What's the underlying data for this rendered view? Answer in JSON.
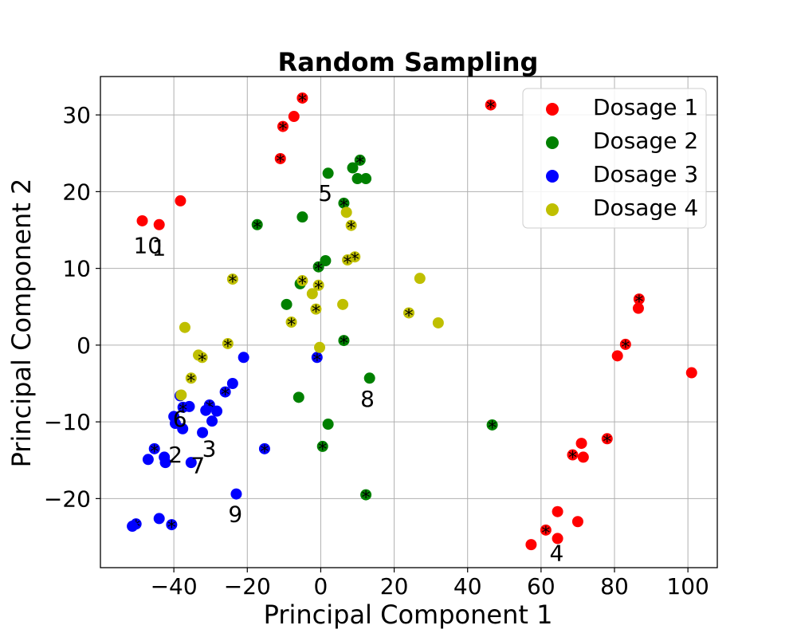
{
  "chart_data": {
    "type": "scatter",
    "title": "Random Sampling",
    "xlabel": "Principal Component 1",
    "ylabel": "Principal Component 2",
    "xlim": [
      -60,
      108
    ],
    "ylim": [
      -29,
      35
    ],
    "xticks": [
      -40,
      -20,
      0,
      20,
      40,
      60,
      80,
      100
    ],
    "yticks": [
      -20,
      -10,
      0,
      10,
      20,
      30
    ],
    "xtick_labels": [
      "−40",
      "−20",
      "0",
      "20",
      "40",
      "60",
      "80",
      "100"
    ],
    "ytick_labels": [
      "−20",
      "−10",
      "0",
      "10",
      "20",
      "30"
    ],
    "grid": true,
    "legend_position": "top-right",
    "series": [
      {
        "name": "Dosage 1",
        "color": "#ff0000",
        "points": [
          {
            "x": -5,
            "y": 32.2,
            "s": true
          },
          {
            "x": 46.3,
            "y": 31.3,
            "s": true
          },
          {
            "x": -7.3,
            "y": 29.8,
            "s": false
          },
          {
            "x": -10.3,
            "y": 28.5,
            "s": true
          },
          {
            "x": -11,
            "y": 24.3,
            "s": true
          },
          {
            "x": -38.2,
            "y": 18.8,
            "s": false
          },
          {
            "x": -48.6,
            "y": 16.2,
            "s": false
          },
          {
            "x": -44,
            "y": 15.7,
            "s": false
          },
          {
            "x": 86.7,
            "y": 6,
            "s": true
          },
          {
            "x": 86.5,
            "y": 4.8,
            "s": false
          },
          {
            "x": 83,
            "y": 0.1,
            "s": true
          },
          {
            "x": 80.8,
            "y": -1.4,
            "s": false
          },
          {
            "x": 101,
            "y": -3.6,
            "s": false
          },
          {
            "x": 78,
            "y": -12.2,
            "s": true
          },
          {
            "x": 71,
            "y": -12.8,
            "s": false
          },
          {
            "x": 68.6,
            "y": -14.3,
            "s": true
          },
          {
            "x": 71.5,
            "y": -14.6,
            "s": false
          },
          {
            "x": 64.5,
            "y": -21.7,
            "s": false
          },
          {
            "x": 70,
            "y": -23,
            "s": false
          },
          {
            "x": 61.3,
            "y": -24.1,
            "s": true
          },
          {
            "x": 64.5,
            "y": -25.2,
            "s": false
          },
          {
            "x": 57.3,
            "y": -26,
            "s": false
          }
        ]
      },
      {
        "name": "Dosage 2",
        "color": "#008000",
        "points": [
          {
            "x": 10.7,
            "y": 24.1,
            "s": true
          },
          {
            "x": 8.7,
            "y": 23.1,
            "s": false
          },
          {
            "x": 2,
            "y": 22.4,
            "s": false
          },
          {
            "x": 10,
            "y": 21.7,
            "s": false
          },
          {
            "x": 12.3,
            "y": 21.7,
            "s": false
          },
          {
            "x": 6.3,
            "y": 18.5,
            "s": true
          },
          {
            "x": -5,
            "y": 16.7,
            "s": false
          },
          {
            "x": -17.3,
            "y": 15.7,
            "s": true
          },
          {
            "x": 1.3,
            "y": 11,
            "s": false
          },
          {
            "x": -0.6,
            "y": 10.2,
            "s": true
          },
          {
            "x": -5.6,
            "y": 8,
            "s": false
          },
          {
            "x": -9.3,
            "y": 5.3,
            "s": false
          },
          {
            "x": 6.3,
            "y": 0.6,
            "s": true
          },
          {
            "x": 13.3,
            "y": -4.3,
            "s": false
          },
          {
            "x": -6,
            "y": -6.8,
            "s": false
          },
          {
            "x": 2,
            "y": -10.3,
            "s": false
          },
          {
            "x": 46.7,
            "y": -10.4,
            "s": true
          },
          {
            "x": 0.5,
            "y": -13.2,
            "s": true
          },
          {
            "x": 12.3,
            "y": -19.5,
            "s": true
          }
        ]
      },
      {
        "name": "Dosage 3",
        "color": "#0000ff",
        "points": [
          {
            "x": -21,
            "y": -1.6,
            "s": false
          },
          {
            "x": -1,
            "y": -1.6,
            "s": true
          },
          {
            "x": -24,
            "y": -5,
            "s": false
          },
          {
            "x": -26,
            "y": -6.1,
            "s": true
          },
          {
            "x": -38.3,
            "y": -6.6,
            "s": true
          },
          {
            "x": -35.8,
            "y": -8,
            "s": false
          },
          {
            "x": -37.5,
            "y": -8.1,
            "s": true
          },
          {
            "x": -30.3,
            "y": -7.8,
            "s": true
          },
          {
            "x": -31.3,
            "y": -8.5,
            "s": false
          },
          {
            "x": -28.3,
            "y": -8.6,
            "s": false
          },
          {
            "x": -40,
            "y": -9.3,
            "s": false
          },
          {
            "x": -29.6,
            "y": -9.9,
            "s": false
          },
          {
            "x": -39.6,
            "y": -10.2,
            "s": false
          },
          {
            "x": -37.6,
            "y": -10.9,
            "s": false
          },
          {
            "x": -32.2,
            "y": -11.4,
            "s": false
          },
          {
            "x": -15.3,
            "y": -13.5,
            "s": true
          },
          {
            "x": -45.3,
            "y": -13.5,
            "s": true
          },
          {
            "x": -42.6,
            "y": -14.6,
            "s": false
          },
          {
            "x": -47,
            "y": -14.9,
            "s": false
          },
          {
            "x": -42.3,
            "y": -15.3,
            "s": false
          },
          {
            "x": -35.3,
            "y": -15.3,
            "s": false
          },
          {
            "x": -23,
            "y": -19.4,
            "s": false
          },
          {
            "x": -44,
            "y": -22.6,
            "s": false
          },
          {
            "x": -50.3,
            "y": -23.3,
            "s": true
          },
          {
            "x": -40.6,
            "y": -23.4,
            "s": true
          },
          {
            "x": -51.3,
            "y": -23.6,
            "s": false
          }
        ]
      },
      {
        "name": "Dosage 4",
        "color": "#bfbf00",
        "points": [
          {
            "x": 7,
            "y": 17.3,
            "s": false
          },
          {
            "x": 8.3,
            "y": 15.6,
            "s": true
          },
          {
            "x": 9.3,
            "y": 11.5,
            "s": true
          },
          {
            "x": 7.3,
            "y": 11.1,
            "s": true
          },
          {
            "x": -24,
            "y": 8.6,
            "s": true
          },
          {
            "x": 27,
            "y": 8.7,
            "s": false
          },
          {
            "x": -5,
            "y": 8.4,
            "s": true
          },
          {
            "x": -0.6,
            "y": 7.8,
            "s": true
          },
          {
            "x": -2.3,
            "y": 6.7,
            "s": false
          },
          {
            "x": 6,
            "y": 5.3,
            "s": false
          },
          {
            "x": -1.3,
            "y": 4.7,
            "s": true
          },
          {
            "x": 24,
            "y": 4.2,
            "s": true
          },
          {
            "x": -8,
            "y": 3,
            "s": true
          },
          {
            "x": 32,
            "y": 2.9,
            "s": false
          },
          {
            "x": -37,
            "y": 2.3,
            "s": false
          },
          {
            "x": -25.3,
            "y": 0.2,
            "s": true
          },
          {
            "x": -0.3,
            "y": -0.3,
            "s": false
          },
          {
            "x": -33.3,
            "y": -1.3,
            "s": false
          },
          {
            "x": -32.3,
            "y": -1.6,
            "s": true
          },
          {
            "x": -35.3,
            "y": -4.3,
            "s": true
          },
          {
            "x": -38,
            "y": -6.5,
            "s": false
          }
        ]
      }
    ],
    "annotations": [
      {
        "text": "10",
        "x": -51,
        "y": 12
      },
      {
        "text": "1",
        "x": -46,
        "y": 11.7
      },
      {
        "text": "5",
        "x": -0.7,
        "y": 18.8
      },
      {
        "text": "8",
        "x": 10.8,
        "y": -8
      },
      {
        "text": "6",
        "x": -40.3,
        "y": -10.6
      },
      {
        "text": "3",
        "x": -32.3,
        "y": -14.5
      },
      {
        "text": "2",
        "x": -41.5,
        "y": -15.3
      },
      {
        "text": "7",
        "x": -35.4,
        "y": -16.7
      },
      {
        "text": "9",
        "x": -25.2,
        "y": -23
      },
      {
        "text": "4",
        "x": 62.3,
        "y": -28.1
      }
    ]
  }
}
